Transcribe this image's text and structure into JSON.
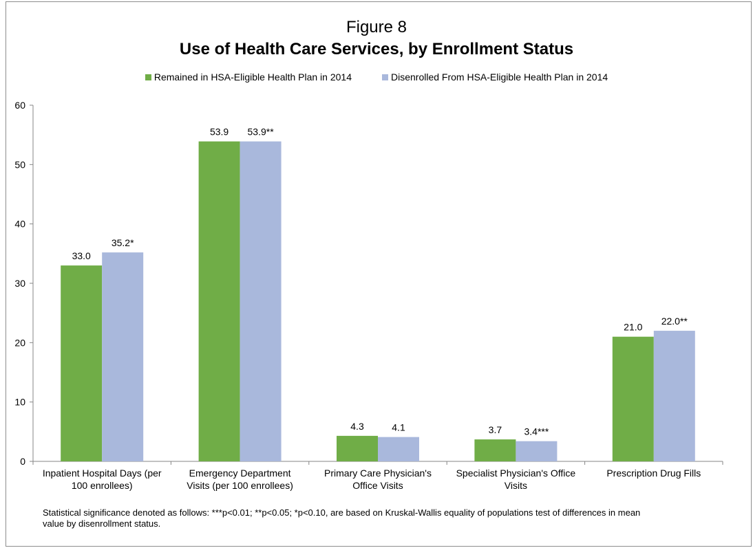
{
  "figure_label": "Figure 8",
  "title": "Use of Health Care Services, by Enrollment Status",
  "footnote": "Statistical significance denoted as follows: ***p<0.01; **p<0.05; *p<0.10, are based on Kruskal-Wallis equality of populations test of differences in mean value by disenrollment status.",
  "colors": {
    "series1": "#70ad47",
    "series2": "#a9b8dc",
    "axis": "#868686"
  },
  "chart_data": {
    "type": "bar",
    "title": "Use of Health Care Services, by Enrollment Status",
    "xlabel": "",
    "ylabel": "",
    "ylim": [
      0,
      60
    ],
    "yticks": [
      0,
      10,
      20,
      30,
      40,
      50,
      60
    ],
    "grid": false,
    "legend_position": "top",
    "categories": [
      [
        "Inpatient Hospital Days (per",
        "100 enrollees)"
      ],
      [
        "Emergency Department",
        "Visits (per 100 enrollees)"
      ],
      [
        "Primary Care Physician's",
        "Office Visits"
      ],
      [
        "Specialist Physician's Office",
        "Visits"
      ],
      [
        "Prescription Drug Fills"
      ]
    ],
    "series": [
      {
        "name": "Remained in HSA-Eligible Health Plan in 2014",
        "values": [
          33.0,
          53.9,
          4.3,
          3.7,
          21.0
        ],
        "labels": [
          "33.0",
          "53.9",
          "4.3",
          "3.7",
          "21.0"
        ]
      },
      {
        "name": "Disenrolled From HSA-Eligible Health Plan in 2014",
        "values": [
          35.2,
          53.9,
          4.1,
          3.4,
          22.0
        ],
        "labels": [
          "35.2*",
          "53.9**",
          "4.1",
          "3.4***",
          "22.0**"
        ]
      }
    ]
  }
}
